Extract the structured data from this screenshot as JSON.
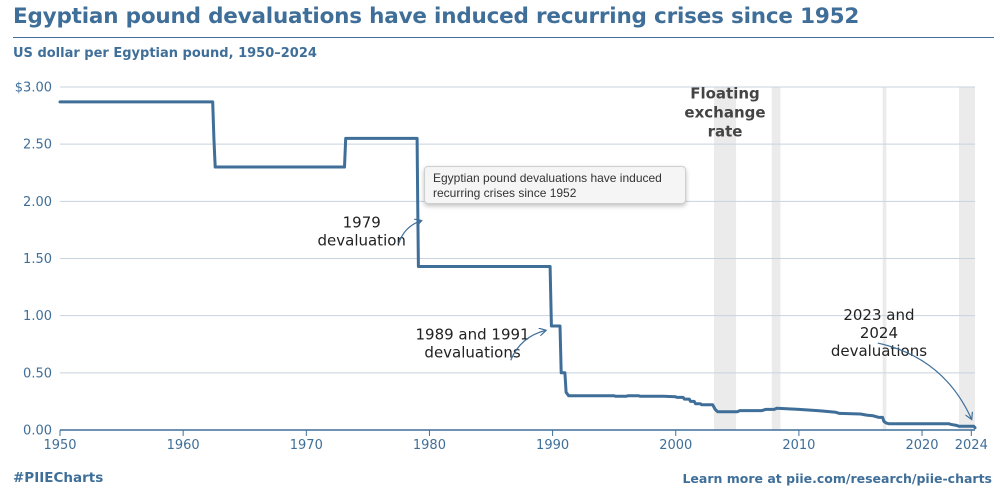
{
  "title": "Egyptian pound devaluations have induced recurring crises since 1952",
  "subtitle": "US dollar per Egyptian pound, 1950–2024",
  "footer": {
    "hashtag": "#PIIECharts",
    "link_text": "Learn more at piie.com/research/piie-charts"
  },
  "tooltip": {
    "line1": "Egyptian pound devaluations have induced",
    "line2": "recurring crises since 1952"
  },
  "colors": {
    "line": "#3f6f99",
    "brand": "#3f6f99",
    "shade": "#ebebeb",
    "grid": "#c8d3de"
  },
  "chart_data": {
    "type": "line",
    "title": "Egyptian pound devaluations have induced recurring crises since 1952",
    "ylabel": "US dollar per Egyptian pound, 1950–2024",
    "xlim": [
      1950,
      2024.3
    ],
    "ylim": [
      0,
      3
    ],
    "y_ticks": [
      {
        "value": 0,
        "label": "0.00"
      },
      {
        "value": 0.5,
        "label": "0.50"
      },
      {
        "value": 1.0,
        "label": "1.00"
      },
      {
        "value": 1.5,
        "label": "1.50"
      },
      {
        "value": 2.0,
        "label": "2.00"
      },
      {
        "value": 2.5,
        "label": "2.50"
      },
      {
        "value": 3.0,
        "label": "$3.00"
      }
    ],
    "x_ticks": [
      {
        "value": 1950,
        "label": "1950"
      },
      {
        "value": 1960,
        "label": "1960"
      },
      {
        "value": 1970,
        "label": "1970"
      },
      {
        "value": 1980,
        "label": "1980"
      },
      {
        "value": 1990,
        "label": "1990"
      },
      {
        "value": 2000,
        "label": "2000"
      },
      {
        "value": 2010,
        "label": "2010"
      },
      {
        "value": 2020,
        "label": "2020"
      },
      {
        "value": 2024,
        "label": "2024"
      }
    ],
    "grid": true,
    "shaded_periods": [
      {
        "start": 2003.1,
        "end": 2004.9
      },
      {
        "start": 2007.8,
        "end": 2008.5
      },
      {
        "start": 2016.8,
        "end": 2017.1
      },
      {
        "start": 2023.0,
        "end": 2024.3
      }
    ],
    "series": [
      {
        "name": "",
        "x": [
          1950,
          1962.4,
          1962.5,
          1962.6,
          1973.1,
          1973.2,
          1979.0,
          1979.05,
          1979.1,
          1989.8,
          1989.9,
          1990.6,
          1990.7,
          1991.0,
          1991.1,
          1991.3,
          1995.0,
          1995.1,
          1996.0,
          1996.1,
          1997.0,
          1997.1,
          1998.0,
          1999.0,
          2000.0,
          2000.1,
          2000.6,
          2000.7,
          2001.1,
          2001.2,
          2001.5,
          2001.6,
          2002.0,
          2002.1,
          2003.0,
          2003.2,
          2003.4,
          2005.0,
          2005.2,
          2007.0,
          2007.3,
          2008.0,
          2008.2,
          2010.0,
          2011.5,
          2012.0,
          2013.0,
          2013.3,
          2015.0,
          2015.5,
          2016.0,
          2016.5,
          2016.8,
          2016.9,
          2017.1,
          2017.3,
          2022.2,
          2022.3,
          2022.8,
          2023.0,
          2024.2,
          2024.3
        ],
        "y": [
          2.87,
          2.87,
          2.55,
          2.3,
          2.3,
          2.55,
          2.55,
          2.0,
          1.43,
          1.43,
          0.91,
          0.91,
          0.5,
          0.5,
          0.33,
          0.3,
          0.3,
          0.295,
          0.295,
          0.3,
          0.3,
          0.295,
          0.295,
          0.295,
          0.29,
          0.285,
          0.285,
          0.27,
          0.27,
          0.25,
          0.25,
          0.23,
          0.23,
          0.22,
          0.22,
          0.18,
          0.16,
          0.16,
          0.17,
          0.17,
          0.18,
          0.18,
          0.19,
          0.18,
          0.17,
          0.165,
          0.155,
          0.145,
          0.14,
          0.13,
          0.125,
          0.11,
          0.11,
          0.075,
          0.06,
          0.055,
          0.055,
          0.05,
          0.04,
          0.032,
          0.032,
          0.02
        ]
      }
    ],
    "annotations": [
      {
        "label": "Floating exchange rate",
        "lines": [
          "Floating",
          "exchange",
          "rate"
        ],
        "bold": true,
        "x": 2004.0,
        "y": 2.9
      },
      {
        "label": "1979 devaluation",
        "lines": [
          "1979",
          "devaluation"
        ],
        "x": 1974.5,
        "y": 1.77,
        "arrow_from": [
          1977.5,
          1.63
        ],
        "arrow_to": [
          1979.3,
          1.83
        ]
      },
      {
        "label": "1989 and 1991 devaluations",
        "lines": [
          "1989 and 1991",
          "devaluations"
        ],
        "x": 1983.5,
        "y": 0.79,
        "arrow_from": [
          1986.6,
          0.61
        ],
        "arrow_to": [
          1989.4,
          0.87
        ]
      },
      {
        "label": "2023 and 2024 devaluations",
        "lines": [
          "2023 and",
          "2024",
          "devaluations"
        ],
        "x": 2016.5,
        "y": 0.96,
        "arrow_from": [
          2016.4,
          0.76
        ],
        "arrow_to": [
          2024.0,
          0.1
        ]
      }
    ]
  }
}
